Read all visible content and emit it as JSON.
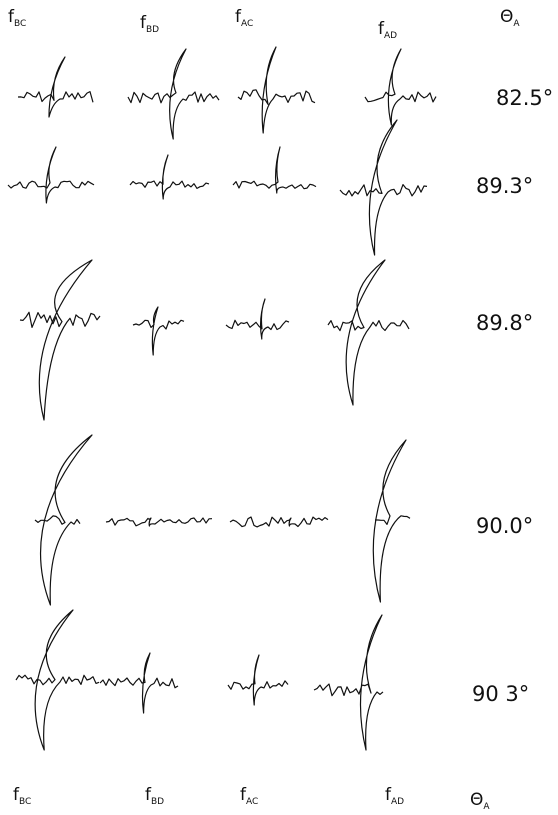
{
  "header": {
    "columns": [
      {
        "main": "f",
        "sub": "BC"
      },
      {
        "main": "f",
        "sub": "BD"
      },
      {
        "main": "f",
        "sub": "AC"
      },
      {
        "main": "f",
        "sub": "AD"
      }
    ],
    "angle": {
      "main": "Θ",
      "sub": "A"
    }
  },
  "rows": [
    {
      "angle": "82.5°"
    },
    {
      "angle": "89.3°"
    },
    {
      "angle": "89.8°"
    },
    {
      "angle": "90.0°"
    },
    {
      "angle": "90 3°"
    }
  ],
  "footer": {
    "columns": [
      {
        "main": "f",
        "sub": "BC"
      },
      {
        "main": "f",
        "sub": "BD"
      },
      {
        "main": "f",
        "sub": "AC"
      },
      {
        "main": "f",
        "sub": "AD"
      }
    ],
    "angle": {
      "main": "Θ",
      "sub": "A"
    }
  }
}
